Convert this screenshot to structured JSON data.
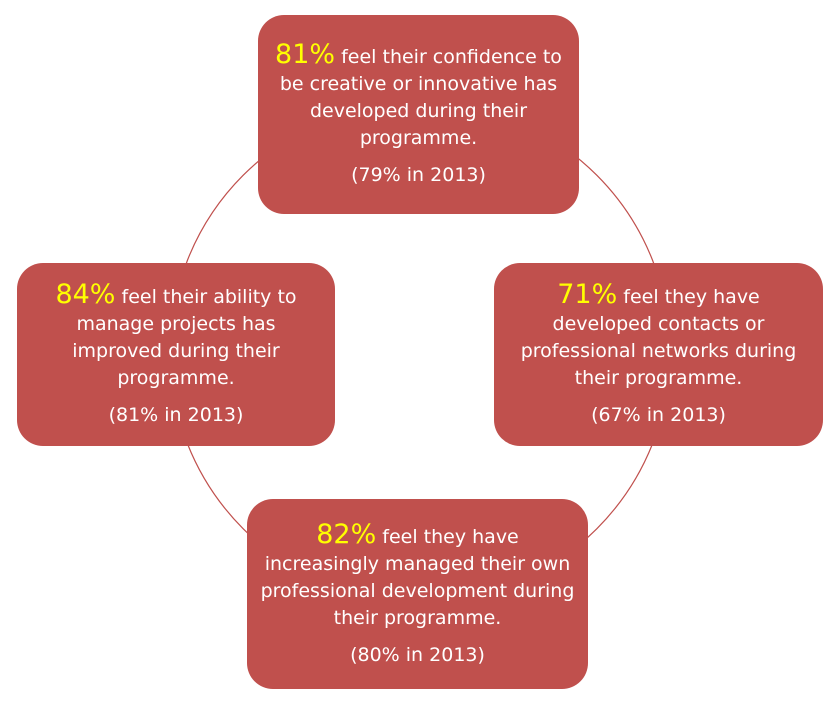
{
  "colors": {
    "box": "#c0504d",
    "percent": "#ffff00",
    "text": "#ffffff",
    "ring": "#c0504d"
  },
  "items": [
    {
      "percent": "81%",
      "text": "feel their confidence to be creative or innovative has developed during their programme.",
      "prior": "(79% in 2013)"
    },
    {
      "percent": "71%",
      "text": "feel they have developed contacts or professional networks during their programme.",
      "prior": "(67% in 2013)"
    },
    {
      "percent": "82%",
      "text": "feel they have increasingly managed their own professional development during their programme.",
      "prior": "(80% in 2013)"
    },
    {
      "percent": "84%",
      "text": "feel their ability to manage projects has improved during their programme.",
      "prior": "(81% in 2013)"
    }
  ]
}
